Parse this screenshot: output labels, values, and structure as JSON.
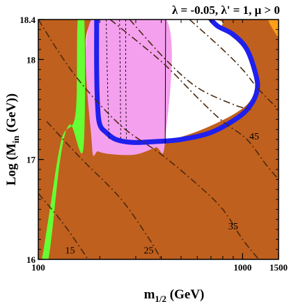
{
  "chart_data": {
    "type": "area",
    "title": "λ = -0.05, λ' = 1,  μ > 0",
    "xlabel_main": "m",
    "xlabel_sub": "1/2",
    "xlabel_unit": " (GeV)",
    "ylabel_main": "Log (M",
    "ylabel_sub": "in",
    "ylabel_unit": " (GeV))",
    "x_scale": "log",
    "xlim": [
      100,
      1500
    ],
    "ylim": [
      16,
      18.4
    ],
    "x_ticks": [
      {
        "value": 100,
        "label": "100"
      },
      {
        "value": 1000,
        "label": "1000"
      },
      {
        "value": 1500,
        "label": "1500"
      }
    ],
    "y_ticks": [
      {
        "value": 16,
        "label": "16"
      },
      {
        "value": 17,
        "label": "17"
      },
      {
        "value": 18,
        "label": "18"
      },
      {
        "value": 18.4,
        "label": "18.4"
      }
    ],
    "colors": {
      "excluded": "#c0601e",
      "green": "#66ff33",
      "pink": "#f4a0ee",
      "blue": "#1f1fee",
      "orange": "#ffa01a",
      "contour": "#4a2a10",
      "frame": "#000000"
    },
    "regions": {
      "green": [
        [
          100,
          16
        ],
        [
          112,
          16
        ],
        [
          128,
          17.0
        ],
        [
          143,
          17.35
        ],
        [
          166,
          17.1
        ],
        [
          168,
          18.4
        ],
        [
          156,
          18.4
        ],
        [
          152,
          17.45
        ],
        [
          130,
          17.2
        ],
        [
          112,
          16.4
        ],
        [
          104,
          16.0
        ]
      ],
      "pink": [
        [
          182,
          18.4
        ],
        [
          183,
          17.15
        ],
        [
          197,
          17.08
        ],
        [
          235,
          17.05
        ],
        [
          300,
          17.05
        ],
        [
          375,
          17.12
        ],
        [
          416,
          17.16
        ],
        [
          424,
          18.4
        ]
      ],
      "orange": [
        [
          1340,
          18.4
        ],
        [
          1500,
          18.4
        ],
        [
          1500,
          18.24
        ],
        [
          1440,
          18.27
        ]
      ],
      "white": [
        [
          188,
          18.4
        ],
        [
          190,
          17.5
        ],
        [
          205,
          17.22
        ],
        [
          235,
          17.12
        ],
        [
          300,
          17.12
        ],
        [
          400,
          17.17
        ],
        [
          600,
          17.28
        ],
        [
          900,
          17.45
        ],
        [
          1100,
          17.6
        ],
        [
          1150,
          17.8
        ],
        [
          1020,
          18.1
        ],
        [
          800,
          18.3
        ],
        [
          700,
          18.4
        ]
      ],
      "blue": [
        [
          700,
          18.4
        ],
        [
          760,
          18.33
        ],
        [
          900,
          18.25
        ],
        [
          1050,
          18.1
        ],
        [
          1160,
          17.85
        ],
        [
          1180,
          17.7
        ],
        [
          1100,
          17.55
        ],
        [
          950,
          17.42
        ],
        [
          700,
          17.27
        ],
        [
          500,
          17.2
        ],
        [
          380,
          17.18
        ],
        [
          290,
          17.17
        ],
        [
          240,
          17.2
        ],
        [
          215,
          17.27
        ],
        [
          200,
          17.35
        ],
        [
          195,
          17.55
        ],
        [
          193,
          17.9
        ],
        [
          193,
          18.4
        ]
      ]
    },
    "contours": [
      {
        "label": "15",
        "label_at": [
          143,
          16.06
        ],
        "points": [
          [
            100,
            16.66
          ],
          [
            130,
            16.38
          ],
          [
            160,
            16.12
          ],
          [
            175,
            16.0
          ]
        ]
      },
      {
        "label": "25",
        "label_at": [
          347,
          16.06
        ],
        "points": [
          [
            110,
            17.38
          ],
          [
            160,
            17.02
          ],
          [
            250,
            16.62
          ],
          [
            340,
            16.24
          ],
          [
            400,
            16.0
          ]
        ]
      },
      {
        "label": "35",
        "label_at": [
          900,
          16.3
        ],
        "points": [
          [
            100,
            18.4
          ],
          [
            150,
            17.85
          ],
          [
            250,
            17.35
          ],
          [
            400,
            17.05
          ],
          [
            600,
            16.75
          ],
          [
            800,
            16.5
          ],
          [
            1000,
            16.2
          ],
          [
            1200,
            16.0
          ]
        ]
      },
      {
        "label": "45",
        "label_at": [
          1140,
          17.2
        ],
        "points": [
          [
            225,
            18.4
          ],
          [
            400,
            17.98
          ],
          [
            600,
            17.62
          ],
          [
            800,
            17.38
          ],
          [
            1050,
            17.2
          ],
          [
            1300,
            16.95
          ],
          [
            1500,
            16.8
          ]
        ]
      },
      {
        "label": "",
        "points": [
          [
            550,
            18.4
          ],
          [
            800,
            18.1
          ],
          [
            1000,
            17.9
          ],
          [
            1200,
            17.7
          ],
          [
            1500,
            17.5
          ]
        ]
      },
      {
        "label": "",
        "points": [
          [
            280,
            18.4
          ],
          [
            420,
            18.0
          ],
          [
            600,
            17.72
          ],
          [
            900,
            17.55
          ],
          [
            1100,
            17.5
          ]
        ]
      },
      {
        "label": "",
        "points": [
          [
            215,
            18.4
          ],
          [
            218,
            17.8
          ],
          [
            222,
            17.2
          ]
        ]
      },
      {
        "label": "",
        "points": [
          [
            250,
            18.4
          ],
          [
            252,
            17.8
          ],
          [
            253,
            17.2
          ]
        ]
      },
      {
        "label": "",
        "points": [
          [
            268,
            18.4
          ],
          [
            268,
            17.8
          ],
          [
            270,
            17.2
          ]
        ]
      }
    ],
    "grid": false,
    "legend": "none"
  }
}
